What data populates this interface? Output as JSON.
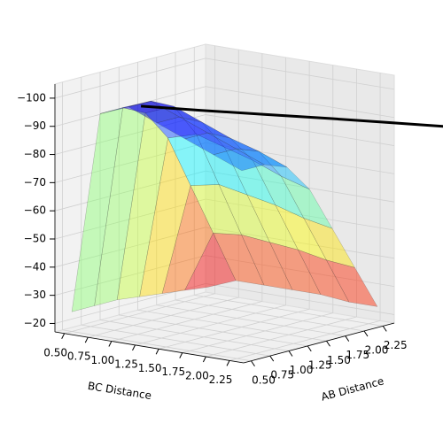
{
  "chart_data": {
    "type": "surface3d",
    "xlabel": "BC Distance",
    "ylabel": "AB Distance",
    "xlim": [
      0.4,
      2.4
    ],
    "ylim": [
      0.4,
      2.4
    ],
    "zlim": [
      -17,
      -105
    ],
    "xticks": [
      {
        "value": 0.5,
        "label": "0.50"
      },
      {
        "value": 0.75,
        "label": "0.75"
      },
      {
        "value": 1.0,
        "label": "1.00"
      },
      {
        "value": 1.25,
        "label": "1.25"
      },
      {
        "value": 1.5,
        "label": "1.50"
      },
      {
        "value": 1.75,
        "label": "1.75"
      },
      {
        "value": 2.0,
        "label": "2.00"
      },
      {
        "value": 2.25,
        "label": "2.25"
      }
    ],
    "yticks": [
      {
        "value": 0.5,
        "label": "0.50"
      },
      {
        "value": 0.75,
        "label": "0.75"
      },
      {
        "value": 1.0,
        "label": "1.00"
      },
      {
        "value": 1.25,
        "label": "1.25"
      },
      {
        "value": 1.5,
        "label": "1.50"
      },
      {
        "value": 1.75,
        "label": "1.75"
      },
      {
        "value": 2.0,
        "label": "2.00"
      },
      {
        "value": 2.25,
        "label": "2.25"
      }
    ],
    "zticks": [
      {
        "value": -100,
        "label": "−100"
      },
      {
        "value": -90,
        "label": "−90"
      },
      {
        "value": -80,
        "label": "−80"
      },
      {
        "value": -70,
        "label": "−70"
      },
      {
        "value": -60,
        "label": "−60"
      },
      {
        "value": -50,
        "label": "−50"
      },
      {
        "value": -40,
        "label": "−40"
      },
      {
        "value": -30,
        "label": "−30"
      },
      {
        "value": -20,
        "label": "−20"
      }
    ],
    "grid": true,
    "surface": {
      "x": [
        0.5,
        0.8,
        1.1,
        1.4,
        1.7,
        2.0,
        2.3
      ],
      "y": [
        0.5,
        0.8,
        1.1,
        1.4,
        1.7,
        2.0,
        2.3
      ],
      "z": [
        [
          -24,
          -24,
          -24,
          -23,
          -22,
          -21,
          -20
        ],
        [
          -96,
          -96,
          -92,
          -81,
          -62,
          -43,
          -24
        ],
        [
          -100,
          -100,
          -96,
          -84,
          -64,
          -44,
          -24
        ],
        [
          -96,
          -96,
          -92,
          -81,
          -62,
          -43,
          -24
        ],
        [
          -92,
          -92,
          -88,
          -78,
          -60,
          -42,
          -24
        ],
        [
          -88,
          -88,
          -85,
          -74,
          -57,
          -40,
          -23
        ],
        [
          -84,
          -84,
          -81,
          -71,
          -55,
          -39,
          -23
        ]
      ]
    },
    "trajectory": {
      "color": "#000000",
      "x": [
        1.16,
        1.6,
        2.1,
        2.6,
        3.0,
        3.46
      ],
      "y": [
        0.59,
        0.8,
        1.05,
        1.3,
        1.5,
        1.72
      ],
      "z": [
        -100,
        -99.5,
        -99,
        -98.5,
        -98,
        -97.5
      ]
    }
  }
}
